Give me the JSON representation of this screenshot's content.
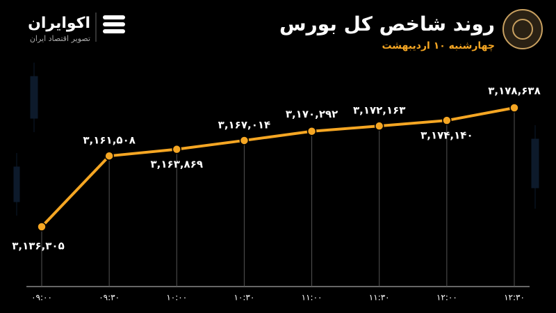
{
  "header": {
    "title": "روند شاخص کل بورس",
    "subtitle": "چهارشنبه ۱۰ اردیبهشت",
    "brand": "اکوایران",
    "tagline": "تصویر اقتصاد ایران"
  },
  "chart_data": {
    "type": "line",
    "categories": [
      "۰۹:۰۰",
      "۰۹:۳۰",
      "۱۰:۰۰",
      "۱۰:۳۰",
      "۱۱:۰۰",
      "۱۱:۳۰",
      "۱۲:۰۰",
      "۱۲:۳۰"
    ],
    "values": [
      3136305,
      3161508,
      3163869,
      3167014,
      3170292,
      3172163,
      3174140,
      3178638
    ],
    "value_labels": [
      "۳,۱۳۶,۳۰۵",
      "۳,۱۶۱,۵۰۸",
      "۳,۱۶۳,۸۶۹",
      "۳,۱۶۷,۰۱۴",
      "۳,۱۷۰,۲۹۲",
      "۳,۱۷۲,۱۶۳",
      "۳,۱۷۴,۱۴۰",
      "۳,۱۷۸,۶۳۸"
    ],
    "color": "#f5a623"
  }
}
